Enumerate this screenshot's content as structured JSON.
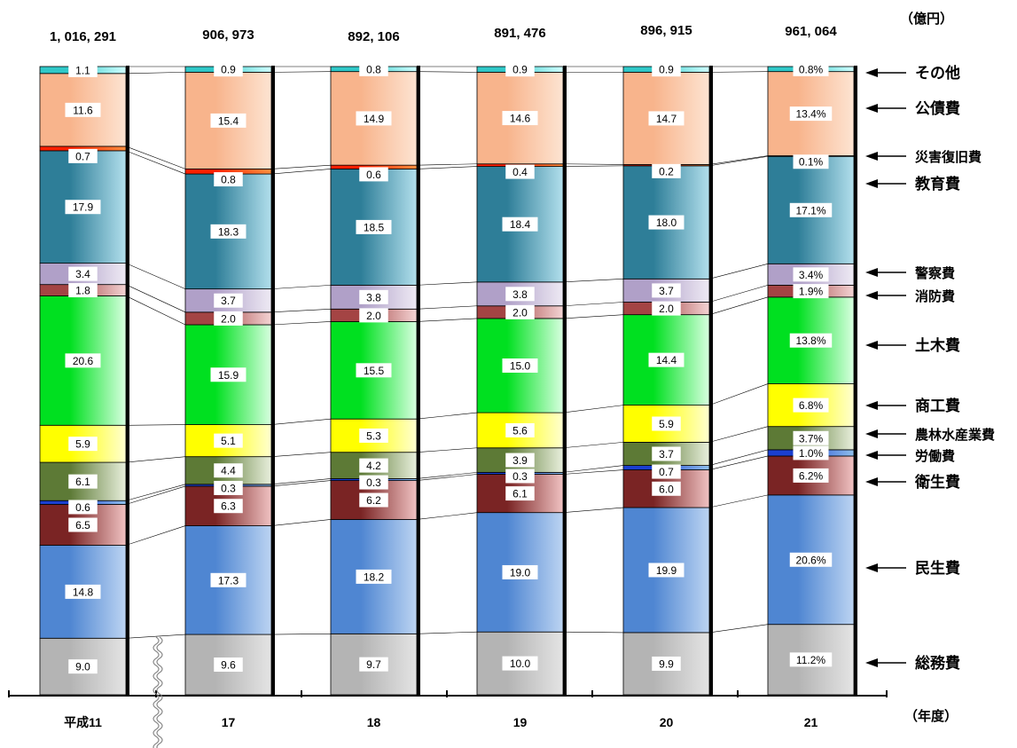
{
  "chart_data": {
    "type": "bar",
    "stacked": true,
    "percent": true,
    "unit_label": "（億円）",
    "x_axis_label": "（年度）",
    "categories": [
      "平成11",
      "17",
      "18",
      "19",
      "20",
      "21"
    ],
    "totals": [
      "1, 016, 291",
      "906, 973",
      "892, 106",
      "891, 476",
      "896, 915",
      "961, 064"
    ],
    "series": [
      {
        "name": "総務費",
        "color": "#b4b4b4",
        "light": "#e4e4e4",
        "values": [
          9.0,
          9.6,
          9.7,
          10.0,
          9.9,
          11.2
        ]
      },
      {
        "name": "民生費",
        "color": "#4f86d2",
        "light": "#bcd4f2",
        "values": [
          14.8,
          17.3,
          18.2,
          19.0,
          19.9,
          20.6
        ]
      },
      {
        "name": "衛生費",
        "color": "#7a2424",
        "light": "#f0c2c2",
        "values": [
          6.5,
          6.3,
          6.2,
          6.1,
          6.0,
          6.2
        ]
      },
      {
        "name": "労働費",
        "color": "#1a3fd0",
        "light": "#8fc0ec",
        "values": [
          0.6,
          0.3,
          0.3,
          0.3,
          0.7,
          1.0
        ]
      },
      {
        "name": "農林水産業費",
        "color": "#5d7a36",
        "light": "#e8efdc",
        "values": [
          6.1,
          4.4,
          4.2,
          3.9,
          3.7,
          3.7
        ]
      },
      {
        "name": "商工費",
        "color": "#ffff00",
        "light": "#ffffd0",
        "values": [
          5.9,
          5.1,
          5.3,
          5.6,
          5.9,
          6.8
        ]
      },
      {
        "name": "土木費",
        "color": "#00e020",
        "light": "#d8ffe0",
        "values": [
          20.6,
          15.9,
          15.5,
          15.0,
          14.4,
          13.8
        ]
      },
      {
        "name": "消防費",
        "color": "#a44444",
        "light": "#f4d4d4",
        "values": [
          1.8,
          2.0,
          2.0,
          2.0,
          2.0,
          1.9
        ]
      },
      {
        "name": "警察費",
        "color": "#b0a0c8",
        "light": "#eeeaf4",
        "values": [
          3.4,
          3.7,
          3.8,
          3.8,
          3.7,
          3.4
        ]
      },
      {
        "name": "教育費",
        "color": "#2e7e98",
        "light": "#b2dfec",
        "values": [
          17.9,
          18.3,
          18.5,
          18.4,
          18.0,
          17.1
        ]
      },
      {
        "name": "災害復旧費",
        "color": "#ff2000",
        "light": "#ff9040",
        "values": [
          0.7,
          0.8,
          0.6,
          0.4,
          0.2,
          0.1
        ]
      },
      {
        "name": "公債費",
        "color": "#f8b48c",
        "light": "#fde4d2",
        "values": [
          11.6,
          15.4,
          14.9,
          14.6,
          14.7,
          13.4
        ]
      },
      {
        "name": "その他",
        "color": "#30c8c8",
        "light": "#d0ffff",
        "values": [
          1.1,
          0.9,
          0.8,
          0.9,
          0.9,
          0.8
        ]
      }
    ],
    "labels": [
      [
        "9.0",
        "9.6",
        "9.7",
        "10.0",
        "9.9",
        "11.2%"
      ],
      [
        "14.8",
        "17.3",
        "18.2",
        "19.0",
        "19.9",
        "20.6%"
      ],
      [
        "6.5",
        "6.3",
        "6.2",
        "6.1",
        "6.0",
        "6.2%"
      ],
      [
        "0.6",
        "0.3",
        "0.3",
        "0.3",
        "0.7",
        "1.0%"
      ],
      [
        "6.1",
        "4.4",
        "4.2",
        "3.9",
        "3.7",
        "3.7%"
      ],
      [
        "5.9",
        "5.1",
        "5.3",
        "5.6",
        "5.9",
        "6.8%"
      ],
      [
        "20.6",
        "15.9",
        "15.5",
        "15.0",
        "14.4",
        "13.8%"
      ],
      [
        "1.8",
        "2.0",
        "2.0",
        "2.0",
        "2.0",
        "1.9%"
      ],
      [
        "3.4",
        "3.7",
        "3.8",
        "3.8",
        "3.7",
        "3.4%"
      ],
      [
        "17.9",
        "18.3",
        "18.5",
        "18.4",
        "18.0",
        "17.1%"
      ],
      [
        "0.7",
        "0.8",
        "0.6",
        "0.4",
        "0.2",
        "0.1%"
      ],
      [
        "11.6",
        "15.4",
        "14.9",
        "14.6",
        "14.7",
        "13.4%"
      ],
      [
        "1.1",
        "0.9",
        "0.8",
        "0.9",
        "0.9",
        "0.8%"
      ]
    ],
    "legend_placement": "right"
  }
}
